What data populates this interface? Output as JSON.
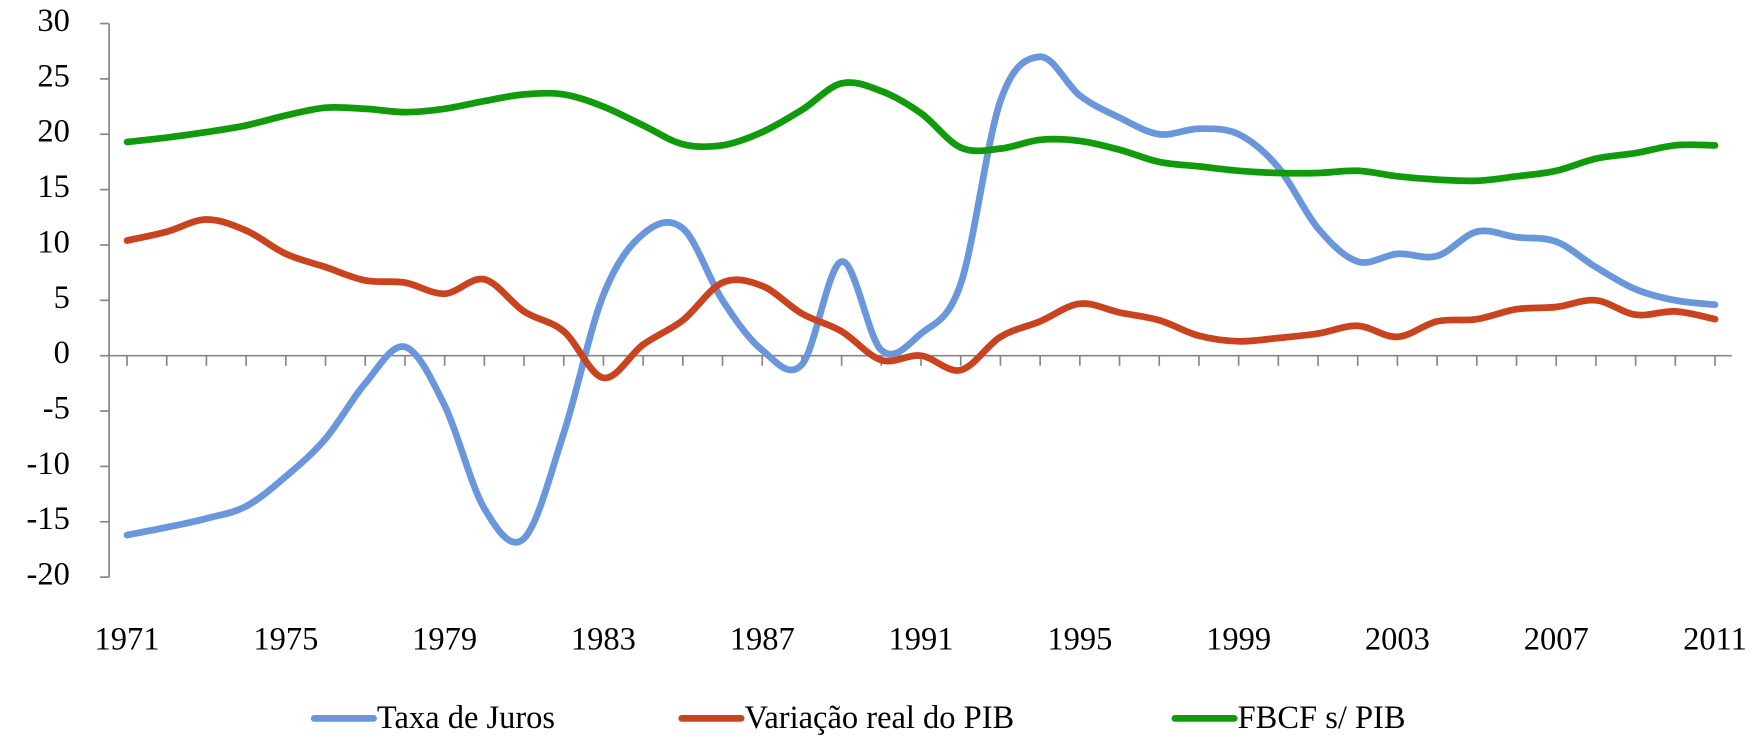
{
  "chart_data": {
    "type": "line",
    "x": [
      1971,
      1972,
      1973,
      1974,
      1975,
      1976,
      1977,
      1978,
      1979,
      1980,
      1981,
      1982,
      1983,
      1984,
      1985,
      1986,
      1987,
      1988,
      1989,
      1990,
      1991,
      1992,
      1993,
      1994,
      1995,
      1996,
      1997,
      1998,
      1999,
      2000,
      2001,
      2002,
      2003,
      2004,
      2005,
      2006,
      2007,
      2008,
      2009,
      2010,
      2011
    ],
    "series": [
      {
        "name": "Taxa de Juros",
        "color": "#6a96db",
        "values": [
          -16.2,
          -15.5,
          -14.7,
          -13.6,
          -10.9,
          -7.5,
          -2.5,
          0.8,
          -4.5,
          -13.8,
          -16.5,
          -7,
          5.5,
          11,
          11.5,
          5,
          0.5,
          -0.8,
          8.5,
          0.5,
          2,
          6.5,
          23,
          27,
          23.5,
          21.5,
          20,
          20.5,
          20,
          17,
          11.5,
          8.5,
          9.2,
          9,
          11.2,
          10.7,
          10.3,
          8,
          6,
          5,
          4.6
        ]
      },
      {
        "name": "Variação real do PIB",
        "color": "#c9431e",
        "values": [
          10.4,
          11.2,
          12.3,
          11.3,
          9.2,
          8,
          6.8,
          6.6,
          5.6,
          6.9,
          4,
          2.2,
          -2,
          1,
          3.2,
          6.6,
          6.3,
          3.8,
          2.2,
          -0.4,
          0,
          -1.3,
          1.7,
          3.1,
          4.7,
          3.9,
          3.2,
          1.8,
          1.3,
          1.6,
          2,
          2.7,
          1.7,
          3.1,
          3.3,
          4.2,
          4.4,
          5,
          3.7,
          4,
          3.3
        ]
      },
      {
        "name": "FBCF s/ PIB",
        "color": "#119a0c",
        "values": [
          19.3,
          19.7,
          20.2,
          20.8,
          21.7,
          22.4,
          22.3,
          22,
          22.3,
          23,
          23.6,
          23.6,
          22.5,
          20.8,
          19.1,
          19,
          20.2,
          22.2,
          24.6,
          23.9,
          21.9,
          18.8,
          18.7,
          19.5,
          19.4,
          18.6,
          17.5,
          17.1,
          16.7,
          16.5,
          16.5,
          16.7,
          16.2,
          15.9,
          15.8,
          16.2,
          16.7,
          17.8,
          18.3,
          19,
          19
        ]
      }
    ],
    "xlim": [
      1971,
      2011
    ],
    "xticks": [
      1971,
      1975,
      1979,
      1983,
      1987,
      1991,
      1995,
      1999,
      2003,
      2007,
      2011
    ],
    "ylim": [
      -20,
      30
    ],
    "yticks": [
      -20,
      -15,
      -10,
      -5,
      0,
      5,
      10,
      15,
      20,
      25,
      30
    ],
    "legend": "bottom",
    "smooth": true
  }
}
